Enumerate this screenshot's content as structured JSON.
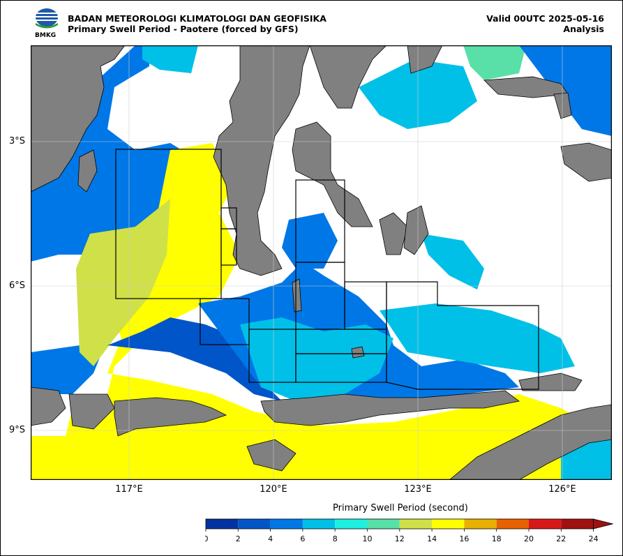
{
  "header": {
    "logo_text": "BMKG",
    "title_line1": "BADAN METEOROLOGI KLIMATOLOGI DAN GEOFISIKA",
    "title_line2": "Primary Swell Period - Paotere (forced by GFS)",
    "valid": "Valid 00UTC 2025-05-16",
    "analysis": "Analysis"
  },
  "axes": {
    "y_ticks": [
      "3°S",
      "6°S",
      "9°S"
    ],
    "x_ticks": [
      "117°E",
      "120°E",
      "123°E",
      "126°E"
    ]
  },
  "colorbar": {
    "title": "Primary Swell Period (second)",
    "ticks": [
      "0",
      "2",
      "4",
      "6",
      "8",
      "10",
      "12",
      "14",
      "16",
      "18",
      "20",
      "22",
      "24"
    ],
    "colors": [
      "#0033a0",
      "#0055c8",
      "#0077e6",
      "#00c0e8",
      "#1ef0e0",
      "#58e0a8",
      "#d0e048",
      "#ffff00",
      "#e8b000",
      "#e86000",
      "#d81818",
      "#a01010"
    ]
  },
  "colors": {
    "land": "#808080",
    "no_swell": "#ffffff"
  }
}
